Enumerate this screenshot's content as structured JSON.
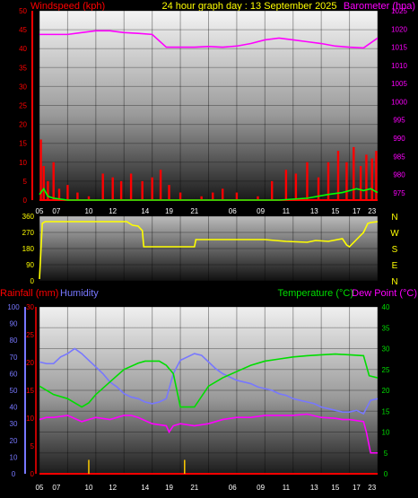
{
  "header": {
    "left_label": "Windspeed (kph)",
    "title": "24 hour graph day : 13 September 2025",
    "right_label": "Barometer (hpa)"
  },
  "labels": {
    "rain": "Rainfall (mm)",
    "humidity": "Humidity",
    "temperature": "Temperature (°C)",
    "dewpoint": "Dew Point (°C)"
  },
  "colors": {
    "wind": "#ff0000",
    "gust": "#00ff00",
    "barometer": "#ff00ff",
    "direction": "#ffff00",
    "humidity": "#7777ff",
    "temperature": "#00dd00",
    "dewpoint": "#ff00ff",
    "rain": "#ff0000",
    "title": "#ffff00"
  },
  "x_ticks": [
    "05",
    "07",
    "10",
    "12",
    "14",
    "19",
    "21",
    "06",
    "09",
    "11",
    "13",
    "15",
    "17",
    "23"
  ],
  "compass": [
    "N",
    "W",
    "S",
    "E",
    "N"
  ],
  "chart_data": [
    {
      "type": "line",
      "name": "wind-barometer",
      "x_range_hours": [
        0,
        24
      ],
      "y_left_ticks": [
        0,
        5,
        10,
        15,
        20,
        25,
        30,
        35,
        40,
        45,
        50
      ],
      "y_left_range": [
        0,
        50
      ],
      "y_right_ticks": [
        975,
        980,
        985,
        990,
        995,
        1000,
        1005,
        1010,
        1015,
        1020,
        1025
      ],
      "y_right_range": [
        973,
        1025
      ],
      "series": [
        {
          "key": "barometer",
          "x": [
            0,
            1,
            2,
            3,
            4,
            5,
            6,
            7,
            8,
            9,
            10,
            11,
            12,
            13,
            14,
            15,
            16,
            17,
            18,
            19,
            20,
            21,
            22,
            23,
            24
          ],
          "values": [
            1018.5,
            1018.5,
            1018.5,
            1019,
            1019.5,
            1019.5,
            1019,
            1018.8,
            1018.5,
            1015,
            1015,
            1015,
            1015.2,
            1015,
            1015.3,
            1016,
            1017,
            1017.5,
            1017,
            1016.5,
            1016,
            1015.3,
            1015,
            1014.8,
            1017.5
          ]
        },
        {
          "key": "wind",
          "style": "bars",
          "x": [
            0.1,
            0.3,
            0.6,
            1.0,
            1.4,
            2.0,
            2.7,
            3.5,
            4.5,
            5.2,
            5.8,
            6.5,
            7.3,
            8.0,
            8.6,
            9.2,
            10.0,
            11.5,
            12.3,
            13.0,
            14.0,
            15.5,
            16.5,
            17.5,
            18.2,
            19.0,
            19.8,
            20.5,
            21.2,
            21.8,
            22.3,
            22.8,
            23.2,
            23.6,
            23.9
          ],
          "values": [
            16,
            9,
            5,
            10,
            3,
            4,
            2,
            1,
            7,
            6,
            5,
            7,
            5,
            6,
            8,
            4,
            2,
            1,
            2,
            3,
            2,
            1,
            5,
            8,
            7,
            10,
            6,
            10,
            13,
            10,
            14,
            9,
            12,
            11,
            13
          ]
        },
        {
          "key": "gust",
          "x": [
            0,
            0.3,
            0.6,
            1.0,
            2.0,
            5.0,
            8.0,
            12.0,
            17.0,
            19.0,
            20.5,
            21.5,
            22.5,
            23.0,
            23.5,
            24.0
          ],
          "values": [
            1.5,
            3,
            1,
            0.5,
            0,
            0,
            0,
            0,
            0,
            0.5,
            1.5,
            2,
            3,
            2.5,
            3,
            2
          ]
        }
      ]
    },
    {
      "type": "line",
      "name": "wind-direction",
      "x_range_hours": [
        0,
        24
      ],
      "y_ticks": [
        0,
        90,
        180,
        270,
        360
      ],
      "y_range": [
        0,
        360
      ],
      "series": [
        {
          "key": "direction",
          "x": [
            0,
            0.2,
            0.4,
            6.2,
            6.6,
            7.0,
            7.3,
            7.4,
            11.0,
            11.1,
            16.0,
            17.5,
            19.0,
            19.6,
            20.5,
            21.5,
            21.8,
            22.0,
            22.5,
            23.0,
            23.3,
            23.5,
            24.0
          ],
          "values": [
            10,
            320,
            330,
            330,
            310,
            305,
            280,
            190,
            190,
            230,
            230,
            220,
            215,
            225,
            220,
            235,
            200,
            190,
            230,
            270,
            320,
            325,
            330
          ]
        }
      ]
    },
    {
      "type": "line",
      "name": "temp-humidity-rain",
      "x_range_hours": [
        0,
        24
      ],
      "y_humidity_ticks": [
        0,
        10,
        20,
        30,
        40,
        50,
        60,
        70,
        80,
        90,
        100
      ],
      "y_humidity_range": [
        0,
        100
      ],
      "y_rain_ticks": [
        0,
        5,
        10,
        15,
        20,
        25,
        30
      ],
      "y_rain_range": [
        0,
        30
      ],
      "y_temp_ticks": [
        0,
        5,
        10,
        15,
        20,
        25,
        30,
        35,
        40
      ],
      "y_temp_range": [
        0,
        40
      ],
      "series": [
        {
          "key": "humidity",
          "x": [
            0,
            0.5,
            1,
            1.5,
            2,
            2.5,
            3,
            3.5,
            4,
            4.5,
            5,
            5.5,
            6,
            6.5,
            7,
            7.5,
            8,
            8.5,
            9,
            9.5,
            10,
            10.5,
            11,
            11.5,
            12,
            12.5,
            13,
            13.5,
            14,
            14.5,
            15,
            15.5,
            16,
            16.5,
            17,
            17.5,
            18,
            18.5,
            19,
            19.5,
            20,
            20.5,
            21,
            21.5,
            22,
            22.5,
            23,
            23.5,
            24
          ],
          "values": [
            67,
            66,
            66,
            70,
            72,
            75,
            72,
            68,
            64,
            60,
            55,
            52,
            48,
            46,
            45,
            43,
            42,
            43,
            45,
            60,
            68,
            70,
            72,
            71,
            67,
            63,
            60,
            58,
            56,
            55,
            54,
            52,
            51,
            50,
            48,
            47,
            45,
            44,
            43,
            42,
            40,
            39,
            38,
            37,
            37,
            38,
            36,
            44,
            45
          ]
        },
        {
          "key": "temperature",
          "x": [
            0,
            1,
            2,
            3,
            3.5,
            4,
            5,
            6,
            7,
            7.5,
            8,
            8.5,
            9,
            9.5,
            10,
            11,
            12,
            13,
            14,
            15,
            16,
            17,
            18,
            19,
            20,
            21,
            22,
            23,
            23.4,
            24
          ],
          "values": [
            21,
            19,
            18,
            16,
            17,
            19,
            22,
            25,
            26.5,
            27,
            27,
            27,
            26,
            24,
            16,
            16,
            21,
            23,
            24.5,
            26,
            27,
            27.5,
            28,
            28.3,
            28.5,
            28.7,
            28.5,
            28.3,
            23.5,
            23
          ]
        },
        {
          "key": "dewpoint",
          "x": [
            0,
            0.5,
            1,
            2,
            3,
            4,
            5,
            6,
            6.5,
            7,
            8,
            9,
            9.2,
            9.5,
            10,
            11,
            12,
            13,
            14,
            15,
            16,
            17,
            18,
            19,
            20,
            21,
            21.5,
            22,
            23,
            23.2,
            23.5,
            24
          ],
          "values": [
            13,
            13.5,
            13.5,
            14,
            12.5,
            13.5,
            13,
            14,
            14,
            13.5,
            12,
            11.5,
            10,
            11.5,
            12,
            11.5,
            12,
            13,
            13.5,
            13.5,
            14,
            14,
            14,
            14.3,
            13.5,
            13.3,
            13,
            13,
            12.5,
            10,
            5,
            5
          ]
        },
        {
          "key": "rain",
          "style": "spikes",
          "x": [
            3.5,
            10.3
          ],
          "values": [
            2.5,
            2.5
          ]
        }
      ]
    }
  ]
}
